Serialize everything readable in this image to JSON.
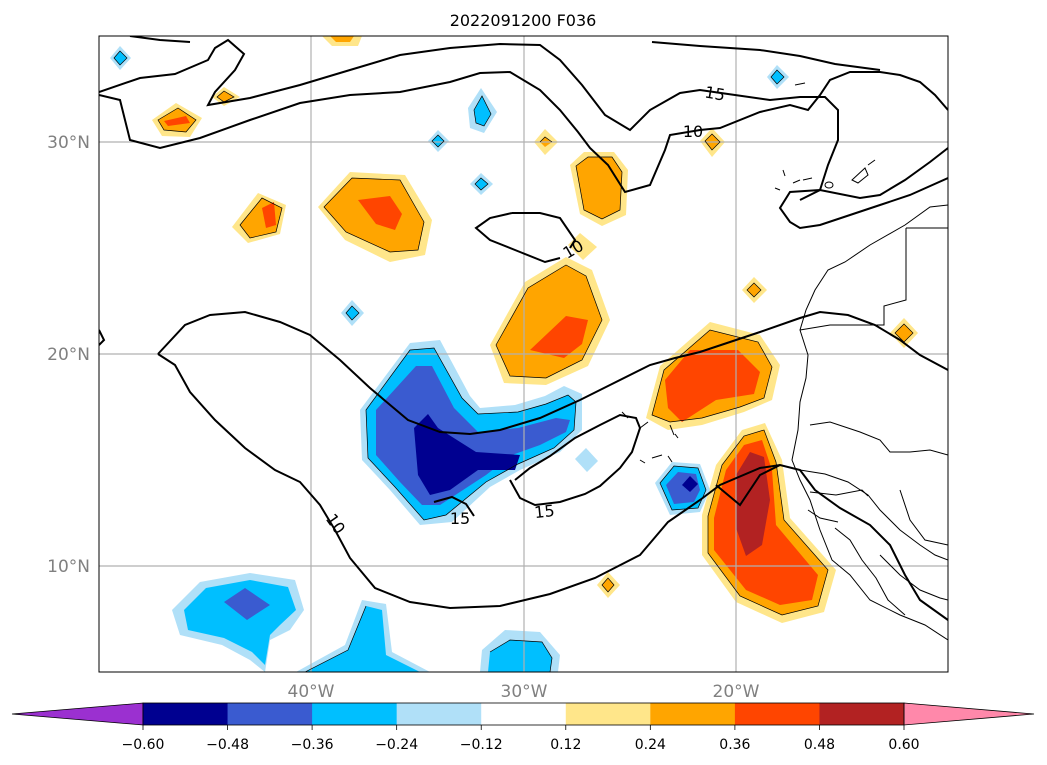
{
  "map": {
    "title": "2022091200 F036",
    "extent": {
      "lon": [
        -50,
        -10
      ],
      "lat": [
        5,
        35
      ]
    },
    "gridlines": {
      "lon": [
        -40,
        -30,
        -20
      ],
      "lat": [
        10,
        20,
        30
      ]
    },
    "lat_labels": [
      "30°N",
      "20°N",
      "10°N"
    ],
    "lon_labels": [
      "40°W",
      "30°W",
      "20°W"
    ],
    "grid_color": "#b0b0b0",
    "contour_labels": [
      {
        "text": "15",
        "lon": -21.5,
        "lat": 32.4
      },
      {
        "text": "10",
        "lon": -22.0,
        "lat": 30.5
      },
      {
        "text": "10",
        "lon": -27.4,
        "lat": 25.2
      },
      {
        "text": "10",
        "lon": -40.8,
        "lat": 12.0
      },
      {
        "text": "15",
        "lon": -33.3,
        "lat": 12.4
      },
      {
        "text": "15",
        "lon": -29.0,
        "lat": 12.7
      }
    ]
  },
  "colorbar": {
    "ticks": [
      "−0.60",
      "−0.48",
      "−0.36",
      "−0.24",
      "−0.12",
      "0.12",
      "0.24",
      "0.36",
      "0.48",
      "0.60"
    ],
    "under_color": "#9b30d0",
    "over_color": "#ff88aa",
    "colors": [
      "#000090",
      "#3a5bd0",
      "#00bfff",
      "#b0e0f8",
      "#ffffff",
      "#ffe68a",
      "#ffa500",
      "#ff4500",
      "#b22222"
    ]
  }
}
